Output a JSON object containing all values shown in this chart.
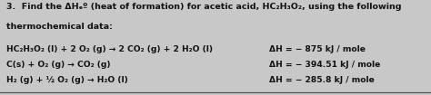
{
  "title_line1": "3.  Find the ΔHₑº (heat of formation) for acetic acid, HC₂H₃O₂, using the following",
  "title_line2": "thermochemical data:",
  "reaction1": "HC₂H₃O₂ (l) + 2 O₂ (g) → 2 CO₂ (g) + 2 H₂O (l)",
  "dH1": "ΔH = − 875 kJ / mole",
  "reaction2": "C(s) + O₂ (g) → CO₂ (g)",
  "dH2": "ΔH = − 394.51 kJ / mole",
  "reaction3": "H₂ (g) + ½ O₂ (g) → H₂O (l)",
  "dH3": "ΔH = − 285.8 kJ / mole",
  "bg_color": "#c8c8c8",
  "text_color": "#111111",
  "font_size_title": 6.8,
  "font_size_body": 6.6,
  "border_color": "#555555",
  "font_weight": "bold"
}
